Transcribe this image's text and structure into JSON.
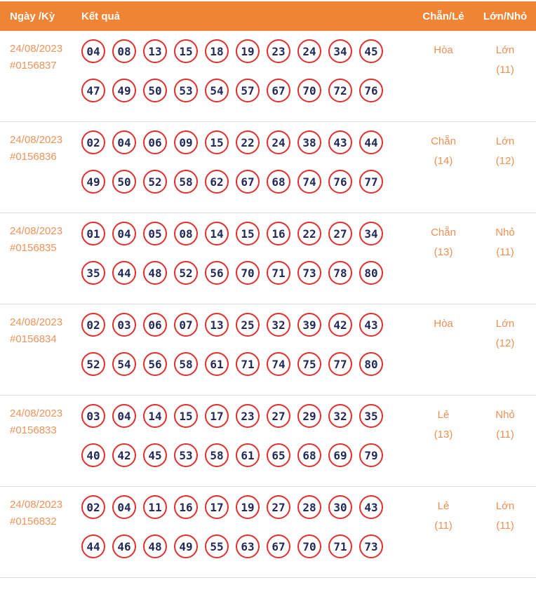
{
  "header": {
    "col_date": "Ngày /Kỳ",
    "col_result": "Kết quả",
    "col_even_odd": "Chẵn/Lẻ",
    "col_big_small": "Lớn/Nhỏ"
  },
  "colors": {
    "header_bg": "#F08435",
    "header_text": "#FFFFFF",
    "accent_text": "#EF935B",
    "ball_border": "#E32E2C",
    "ball_text": "#222A5C",
    "separator": "#DDDDDD"
  },
  "rows": [
    {
      "date": "24/08/2023",
      "draw_id": "#0156837",
      "numbers_line1": [
        "04",
        "08",
        "13",
        "15",
        "18",
        "19",
        "23",
        "24",
        "34",
        "45"
      ],
      "numbers_line2": [
        "47",
        "49",
        "50",
        "53",
        "54",
        "57",
        "67",
        "70",
        "72",
        "76"
      ],
      "even_odd": "Hòa",
      "even_odd_count": "",
      "big_small": "Lớn",
      "big_small_count": "(11)"
    },
    {
      "date": "24/08/2023",
      "draw_id": "#0156836",
      "numbers_line1": [
        "02",
        "04",
        "06",
        "09",
        "15",
        "22",
        "24",
        "38",
        "43",
        "44"
      ],
      "numbers_line2": [
        "49",
        "50",
        "52",
        "58",
        "62",
        "67",
        "68",
        "74",
        "76",
        "77"
      ],
      "even_odd": "Chẵn",
      "even_odd_count": "(14)",
      "big_small": "Lớn",
      "big_small_count": "(12)"
    },
    {
      "date": "24/08/2023",
      "draw_id": "#0156835",
      "numbers_line1": [
        "01",
        "04",
        "05",
        "08",
        "14",
        "15",
        "16",
        "22",
        "27",
        "34"
      ],
      "numbers_line2": [
        "35",
        "44",
        "48",
        "52",
        "56",
        "70",
        "71",
        "73",
        "78",
        "80"
      ],
      "even_odd": "Chẵn",
      "even_odd_count": "(13)",
      "big_small": "Nhỏ",
      "big_small_count": "(11)"
    },
    {
      "date": "24/08/2023",
      "draw_id": "#0156834",
      "numbers_line1": [
        "02",
        "03",
        "06",
        "07",
        "13",
        "25",
        "32",
        "39",
        "42",
        "43"
      ],
      "numbers_line2": [
        "52",
        "54",
        "56",
        "58",
        "61",
        "71",
        "74",
        "75",
        "77",
        "80"
      ],
      "even_odd": "Hòa",
      "even_odd_count": "",
      "big_small": "Lớn",
      "big_small_count": "(12)"
    },
    {
      "date": "24/08/2023",
      "draw_id": "#0156833",
      "numbers_line1": [
        "03",
        "04",
        "14",
        "15",
        "17",
        "23",
        "27",
        "29",
        "32",
        "35"
      ],
      "numbers_line2": [
        "40",
        "42",
        "45",
        "53",
        "58",
        "61",
        "65",
        "68",
        "69",
        "79"
      ],
      "even_odd": "Lẻ",
      "even_odd_count": "(13)",
      "big_small": "Nhỏ",
      "big_small_count": "(11)"
    },
    {
      "date": "24/08/2023",
      "draw_id": "#0156832",
      "numbers_line1": [
        "02",
        "04",
        "11",
        "16",
        "17",
        "19",
        "27",
        "28",
        "30",
        "43"
      ],
      "numbers_line2": [
        "44",
        "46",
        "48",
        "49",
        "55",
        "63",
        "67",
        "70",
        "71",
        "73"
      ],
      "even_odd": "Lẻ",
      "even_odd_count": "(11)",
      "big_small": "Lớn",
      "big_small_count": "(11)"
    }
  ]
}
